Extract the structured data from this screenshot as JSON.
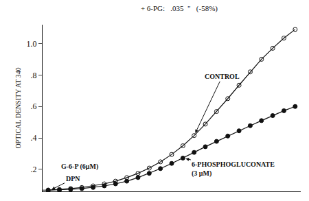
{
  "chart_data": {
    "type": "line",
    "title": "+ 6-PG:   .035  \"   (-58%)",
    "y_label": "OPTICAL DENSITY AT 340",
    "x": [
      0,
      1,
      2,
      3,
      4,
      5,
      6,
      7,
      8,
      9,
      10,
      11,
      12,
      13,
      14,
      15,
      16,
      17,
      18,
      19,
      20,
      21,
      22
    ],
    "series": [
      {
        "color": "#111111",
        "marker": "circle-open",
        "values": [
          0.068,
          0.072,
          0.078,
          0.085,
          0.095,
          0.108,
          0.125,
          0.148,
          0.175,
          0.208,
          0.248,
          0.295,
          0.35,
          0.415,
          0.488,
          0.568,
          0.65,
          0.735,
          0.82,
          0.9,
          0.97,
          1.035,
          1.09
        ]
      },
      {
        "color": "#111111",
        "marker": "circle",
        "values": [
          0.068,
          0.07,
          0.073,
          0.078,
          0.085,
          0.095,
          0.108,
          0.125,
          0.148,
          0.175,
          0.205,
          0.238,
          0.272,
          0.308,
          0.344,
          0.378,
          0.412,
          0.445,
          0.478,
          0.51,
          0.542,
          0.573,
          0.6
        ]
      }
    ],
    "annotations": [
      "CONTROL",
      "6-PHOSPHOGLUCONATE\n(3 μM)",
      "G-6-P (6μM)",
      "DPN"
    ],
    "xlim": [
      -0.5,
      22.5
    ],
    "xticks": [],
    "ylim": [
      0.06,
      1.12
    ],
    "yticks": [
      {
        "value": 0.2,
        "label": ".2"
      },
      {
        "value": 0.4,
        "label": ".4"
      },
      {
        "value": 0.6,
        "label": ".6"
      },
      {
        "value": 0.8,
        "label": ".8"
      },
      {
        "value": 1.0,
        "label": "1.0"
      }
    ],
    "tick_labels": "y",
    "grid": false
  }
}
